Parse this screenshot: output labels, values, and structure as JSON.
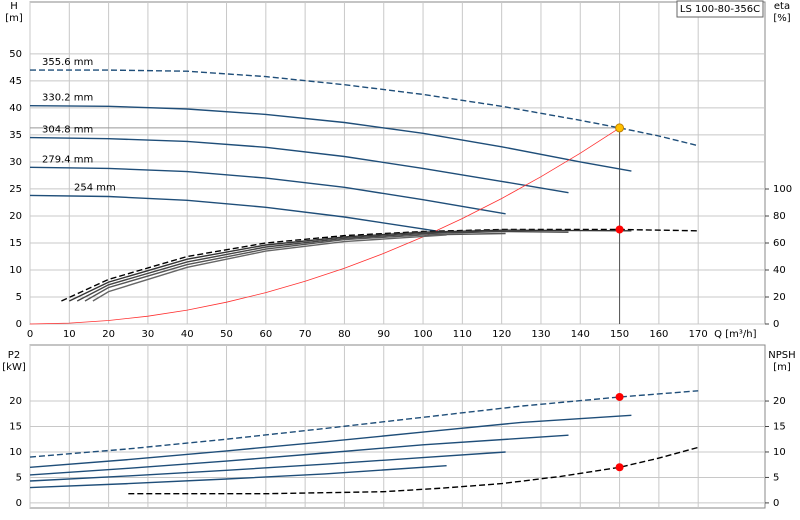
{
  "chart_data": [
    {
      "type": "line",
      "title": "LS 100-80-356C",
      "ylabel": [
        "H",
        "[m]"
      ],
      "y2label": [
        "eta",
        "[%]"
      ],
      "xlabel": "Q [m³/h]",
      "xlim": [
        0,
        187
      ],
      "xticks": [
        0,
        10,
        20,
        30,
        40,
        50,
        60,
        70,
        80,
        90,
        100,
        110,
        120,
        130,
        140,
        150,
        160,
        170
      ],
      "ylim": [
        0,
        59.6
      ],
      "yticks": [
        0,
        5,
        10,
        15,
        20,
        25,
        30,
        35,
        40,
        45,
        50
      ],
      "y2lim": [
        0,
        238.5
      ],
      "y2ticks": [
        0,
        20,
        40,
        60,
        80,
        100
      ],
      "grid": true,
      "series": [
        {
          "name": "355.6 mm",
          "color": "#1f4e79",
          "x": [
            0,
            20,
            40,
            60,
            80,
            100,
            120,
            140,
            150,
            160,
            170
          ],
          "values": [
            47,
            47,
            46.8,
            45.8,
            44.3,
            42.5,
            40.3,
            37.7,
            36.3,
            34.8,
            33
          ],
          "dashed": true
        },
        {
          "name": "330.2 mm",
          "color": "#1f4e79",
          "x": [
            0,
            20,
            40,
            60,
            80,
            100,
            120,
            140,
            153
          ],
          "values": [
            40.4,
            40.3,
            39.8,
            38.8,
            37.3,
            35.3,
            32.8,
            30,
            28.3
          ],
          "dashed": false
        },
        {
          "name": "304.8 mm",
          "color": "#1f4e79",
          "x": [
            0,
            20,
            40,
            60,
            80,
            100,
            120,
            137
          ],
          "values": [
            34.5,
            34.3,
            33.8,
            32.7,
            31,
            28.8,
            26.4,
            24.3
          ],
          "dashed": false
        },
        {
          "name": "279.4 mm",
          "color": "#1f4e79",
          "x": [
            0,
            20,
            40,
            60,
            80,
            100,
            121
          ],
          "values": [
            29,
            28.8,
            28.2,
            27,
            25.3,
            23,
            20.4
          ],
          "dashed": false
        },
        {
          "name": "254 mm",
          "color": "#1f4e79",
          "x": [
            0,
            20,
            40,
            60,
            80,
            100,
            106
          ],
          "values": [
            23.8,
            23.6,
            22.9,
            21.6,
            19.8,
            17.6,
            16.9
          ],
          "dashed": false
        },
        {
          "color": "#ff3030",
          "x": [
            0,
            10,
            20,
            30,
            40,
            50,
            60,
            70,
            80,
            90,
            100,
            110,
            120,
            130,
            140,
            150
          ],
          "values": [
            0,
            0.16,
            0.65,
            1.45,
            2.58,
            4.03,
            5.81,
            7.91,
            10.32,
            13.07,
            16.13,
            19.52,
            23.23,
            27.26,
            31.62,
            36.3
          ],
          "dashed": false
        },
        {
          "color": "#000000",
          "axis": "y2",
          "x": [
            8,
            20,
            40,
            60,
            80,
            100,
            120,
            150,
            170
          ],
          "values": [
            17,
            33,
            50,
            60,
            65.5,
            68.5,
            70,
            70,
            69
          ],
          "dashed": true
        },
        {
          "color": "#333333",
          "axis": "y2",
          "x": [
            10,
            20,
            40,
            60,
            80,
            100,
            120,
            153
          ],
          "values": [
            17,
            31,
            48,
            58.5,
            64.5,
            68,
            69.5,
            69
          ],
          "dashed": false
        },
        {
          "color": "#444444",
          "axis": "y2",
          "x": [
            12,
            20,
            40,
            60,
            80,
            100,
            120,
            137
          ],
          "values": [
            17,
            29,
            46,
            57,
            63.5,
            67,
            68.5,
            68
          ],
          "dashed": false
        },
        {
          "color": "#555555",
          "axis": "y2",
          "x": [
            14,
            20,
            40,
            60,
            80,
            100,
            121
          ],
          "values": [
            17,
            27,
            44,
            55.5,
            62.5,
            66,
            67
          ],
          "dashed": false
        },
        {
          "color": "#666666",
          "axis": "y2",
          "x": [
            16,
            20,
            40,
            60,
            80,
            106
          ],
          "values": [
            17,
            24,
            42,
            54,
            61,
            66
          ],
          "dashed": false
        }
      ],
      "markers": [
        {
          "color": "#ffc000",
          "x": 150,
          "value": 36.3
        },
        {
          "color": "#ff0000",
          "x": 150,
          "value": 70,
          "axis": "y2"
        }
      ]
    },
    {
      "type": "line",
      "ylabel": [
        "P2",
        "[kW]"
      ],
      "y2label": [
        "NPSH",
        "[m]"
      ],
      "xlim": [
        0,
        187
      ],
      "xticks": [
        0,
        10,
        20,
        30,
        40,
        50,
        60,
        70,
        80,
        90,
        100,
        110,
        120,
        130,
        140,
        150,
        160,
        170
      ],
      "ylim": [
        -1,
        31
      ],
      "yticks": [
        0,
        5,
        10,
        15,
        20
      ],
      "y2lim": [
        -1,
        31
      ],
      "y2ticks": [
        0,
        5,
        10,
        15,
        20
      ],
      "grid": true,
      "series": [
        {
          "color": "#1f4e79",
          "x": [
            0,
            25,
            50,
            75,
            100,
            125,
            150,
            170
          ],
          "values": [
            9,
            10.6,
            12.5,
            14.6,
            16.8,
            19,
            20.8,
            22
          ],
          "dashed": true
        },
        {
          "color": "#1f4e79",
          "x": [
            0,
            25,
            50,
            75,
            100,
            125,
            153
          ],
          "values": [
            7,
            8.5,
            10.2,
            12,
            13.9,
            15.8,
            17.2
          ],
          "dashed": false
        },
        {
          "color": "#1f4e79",
          "x": [
            0,
            25,
            50,
            75,
            100,
            137
          ],
          "values": [
            5.5,
            6.8,
            8.2,
            9.8,
            11.4,
            13.3
          ],
          "dashed": false
        },
        {
          "color": "#1f4e79",
          "x": [
            0,
            25,
            50,
            75,
            100,
            121
          ],
          "values": [
            4.3,
            5.3,
            6.4,
            7.6,
            8.9,
            10
          ],
          "dashed": false
        },
        {
          "color": "#1f4e79",
          "x": [
            0,
            25,
            50,
            75,
            106
          ],
          "values": [
            3,
            3.8,
            4.7,
            5.7,
            7.3
          ],
          "dashed": false
        },
        {
          "color": "#000000",
          "axis": "y2",
          "x": [
            25,
            60,
            90,
            105,
            120,
            135,
            150,
            160,
            170
          ],
          "values": [
            1.8,
            1.8,
            2.2,
            2.9,
            3.8,
            5.2,
            7,
            8.8,
            10.9
          ],
          "dashed": true
        }
      ],
      "markers": [
        {
          "color": "#ff0000",
          "x": 150,
          "value": 20.8
        },
        {
          "color": "#ff0000",
          "x": 150,
          "value": 7,
          "axis": "y2"
        }
      ]
    }
  ]
}
